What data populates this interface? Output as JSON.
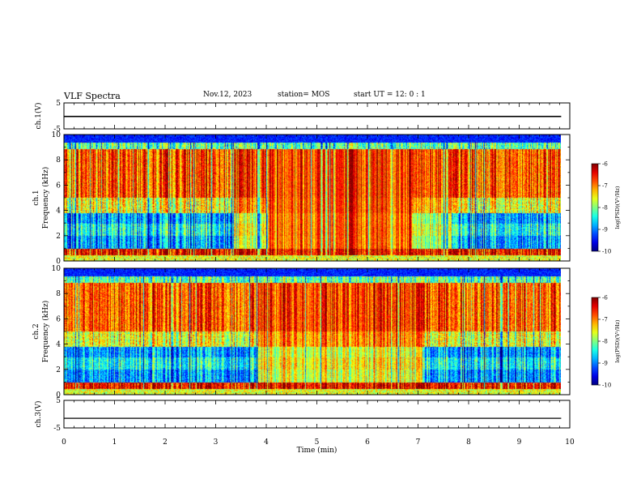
{
  "header": {
    "title": "VLF Spectra",
    "date": "Nov.12, 2023",
    "station": "station= MOS",
    "start": "start  UT =   12: 0  : 1"
  },
  "chart_data": {
    "type": "heatmap",
    "xlabel": "Time (min)",
    "xlim": [
      0,
      10
    ],
    "xticks": [
      "0",
      "1",
      "2",
      "3",
      "4",
      "5",
      "6",
      "7",
      "8",
      "9",
      "10"
    ],
    "panels": [
      {
        "id": "ch1-waveform",
        "ylabel": "ch.1(V)",
        "ylim": [
          -5,
          5
        ],
        "yticks": [
          "5",
          "-5"
        ],
        "kind": "line",
        "value": -0.2
      },
      {
        "id": "ch1-spectrum",
        "ylabel": "ch.1\nFrequency (kHz)",
        "ylim": [
          0,
          10
        ],
        "yticks": [
          "0",
          "2",
          "4",
          "6",
          "8",
          "10"
        ],
        "kind": "spectrogram",
        "colorbar": {
          "label": "log(PSD)(V²/Hz)",
          "range": [
            -10,
            -6
          ],
          "ticks": [
            "-6",
            "-7",
            "-8",
            "-9",
            "-10"
          ]
        }
      },
      {
        "id": "ch2-spectrum",
        "ylabel": "ch.2\nFrequency (kHz)",
        "ylim": [
          0,
          10
        ],
        "yticks": [
          "0",
          "2",
          "4",
          "6",
          "8",
          "10"
        ],
        "kind": "spectrogram",
        "colorbar": {
          "label": "log(PSD)(V²/Hz)",
          "range": [
            -10,
            -6
          ],
          "ticks": [
            "-6",
            "-7",
            "-8",
            "-9",
            "-10"
          ]
        }
      },
      {
        "id": "ch3-waveform",
        "ylabel": "ch.3(V)",
        "ylim": [
          -5,
          5
        ],
        "yticks": [
          "5",
          "-5"
        ],
        "kind": "line",
        "value": -1.5
      }
    ],
    "data_end_min": 9.83
  }
}
